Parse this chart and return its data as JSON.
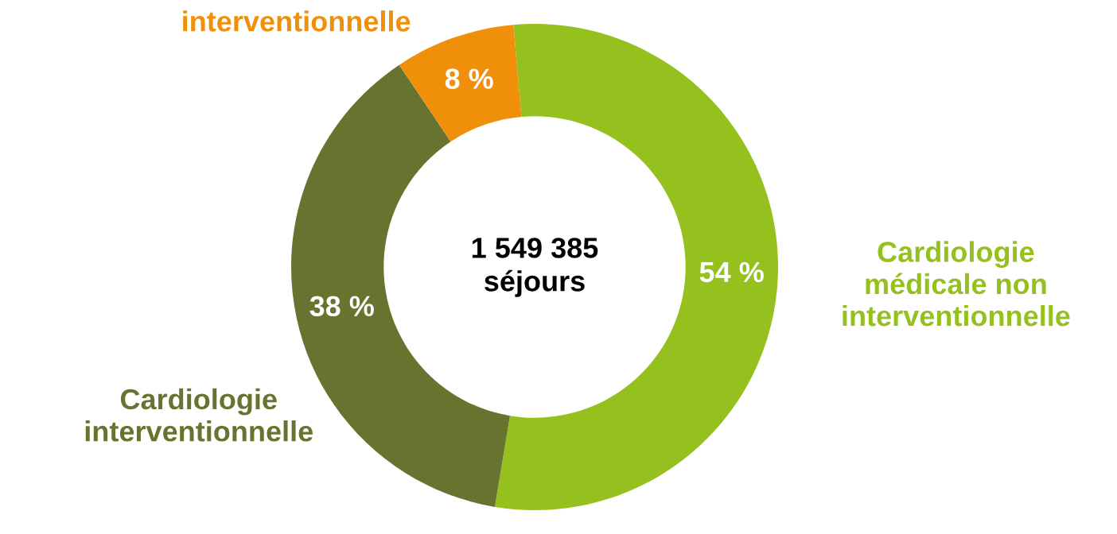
{
  "chart_data": {
    "type": "donut",
    "categories": [
      "Cardiologie\nmédicale non\ninterventionnelle",
      "Cardiologie\ninterventionnelle",
      "interventionnelle"
    ],
    "values": [
      54,
      38,
      8
    ],
    "value_labels": [
      "54 %",
      "38 %",
      "8 %"
    ],
    "colors": [
      "#95c11f",
      "#677430",
      "#f0900a"
    ],
    "annotations": [
      "1 549 385\nséjours"
    ],
    "legend": false
  }
}
